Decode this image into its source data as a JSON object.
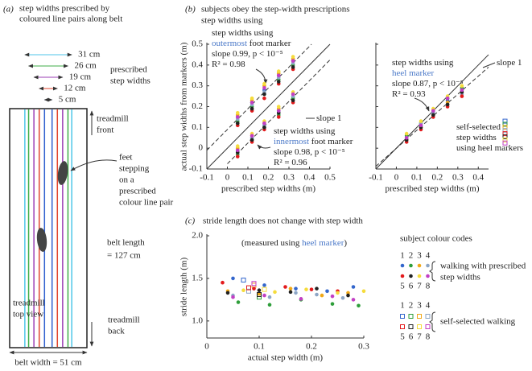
{
  "diagram": {
    "label": "(a)",
    "title": [
      "step widths prescribed by",
      "coloured line pairs along belt"
    ],
    "line_pairs": {
      "values": [
        31,
        26,
        19,
        12,
        5
      ],
      "value_labels": [
        "31 cm",
        "26 cm",
        "19 cm",
        "12 cm",
        "5 cm"
      ],
      "colors": [
        "#4fc6e8",
        "#3fae49",
        "#9b3fb5",
        "#e2452f",
        "#2f5fcf"
      ]
    },
    "prescribed": [
      "prescribed",
      "step widths"
    ],
    "front": [
      "treadmill",
      "front"
    ],
    "feet": [
      "feet",
      "stepping",
      "on a",
      "prescribed",
      "colour line pair"
    ],
    "length": [
      "belt length",
      "= 127 cm"
    ],
    "top_view": [
      "treadmill",
      "top view"
    ],
    "back": [
      "treadmill",
      "back"
    ],
    "width": "belt width = 51 cm"
  },
  "panel_b": {
    "label": "(b)",
    "title": [
      "subjects obey the step-width prescriptions",
      "step widths using"
    ]
  },
  "chart_data": [
    {
      "type": "scatter",
      "xlabel": "prescribed step widths (m)",
      "ylabel": "actual step widths from markers (m)",
      "xlim": [
        -0.1,
        0.5
      ],
      "ylim": [
        -0.1,
        0.5
      ],
      "xticks": [
        -0.1,
        0,
        0.1,
        0.2,
        0.3,
        0.4,
        0.5
      ],
      "yticks": [
        -0.1,
        0,
        0.1,
        0.2,
        0.3,
        0.4,
        0.5
      ],
      "show_ytick_labels": true,
      "series": [
        {
          "color": "#3366cc",
          "x": [
            0.05,
            0.12,
            0.18,
            0.25,
            0.32,
            0.05,
            0.12,
            0.18,
            0.25,
            0.32
          ],
          "values": [
            0.15,
            0.22,
            0.28,
            0.35,
            0.42,
            -0.01,
            0.05,
            0.11,
            0.18,
            0.25
          ]
        },
        {
          "color": "#2e9e3a",
          "x": [
            0.05,
            0.12,
            0.18,
            0.25,
            0.32,
            0.05,
            0.12,
            0.18,
            0.25,
            0.32
          ],
          "values": [
            0.13,
            0.2,
            0.26,
            0.33,
            0.4,
            -0.03,
            0.04,
            0.1,
            0.16,
            0.24
          ]
        },
        {
          "color": "#f0a818",
          "x": [
            0.05,
            0.12,
            0.18,
            0.25,
            0.32,
            0.05,
            0.12,
            0.18,
            0.25,
            0.32
          ],
          "values": [
            0.16,
            0.23,
            0.3,
            0.36,
            0.43,
            0,
            0.06,
            0.12,
            0.19,
            0.26
          ]
        },
        {
          "color": "#8da6c6",
          "x": [
            0.05,
            0.12,
            0.18,
            0.25,
            0.32,
            0.05,
            0.12,
            0.18,
            0.25,
            0.32
          ],
          "values": [
            0.14,
            0.21,
            0.27,
            0.34,
            0.41,
            -0.02,
            0.05,
            0.11,
            0.17,
            0.25
          ]
        },
        {
          "color": "#e31a1c",
          "x": [
            0.05,
            0.12,
            0.18,
            0.25,
            0.32,
            0.05,
            0.12,
            0.18,
            0.25,
            0.32
          ],
          "values": [
            0.11,
            0.18,
            0.24,
            0.31,
            0.38,
            -0.04,
            0.03,
            0.09,
            0.15,
            0.22
          ]
        },
        {
          "color": "#222222",
          "x": [
            0.05,
            0.12,
            0.18,
            0.25,
            0.32,
            0.05,
            0.12,
            0.18,
            0.25,
            0.32
          ],
          "values": [
            0.12,
            0.19,
            0.26,
            0.32,
            0.39,
            -0.02,
            0.04,
            0.1,
            0.17,
            0.23
          ]
        },
        {
          "color": "#f5dc3c",
          "x": [
            0.05,
            0.12,
            0.18,
            0.25,
            0.32,
            0.05,
            0.12,
            0.18,
            0.25,
            0.32
          ],
          "values": [
            0.17,
            0.24,
            0.31,
            0.37,
            0.44,
            0.01,
            0.07,
            0.13,
            0.2,
            0.27
          ]
        },
        {
          "color": "#c23fc4",
          "x": [
            0.05,
            0.12,
            0.18,
            0.25,
            0.32,
            0.05,
            0.12,
            0.18,
            0.25,
            0.32
          ],
          "values": [
            0.15,
            0.22,
            0.29,
            0.35,
            0.42,
            -0.01,
            0.06,
            0.12,
            0.18,
            0.26
          ]
        }
      ],
      "lines": [
        {
          "x": [
            -0.1,
            0.5
          ],
          "y": [
            -0.1,
            0.5
          ],
          "dashed": false
        },
        {
          "x": [
            -0.1,
            0.41
          ],
          "y": [
            -0.01,
            0.5
          ],
          "dashed": true
        },
        {
          "x": [
            0,
            0.5
          ],
          "y": [
            -0.075,
            0.425
          ],
          "dashed": true
        }
      ],
      "annotations": [
        {
          "lines": [
            [
              {
                "text": "step widths using"
              }
            ],
            [
              {
                "text": "outermost",
                "color": "#4a78c8"
              },
              {
                "text": " foot marker"
              }
            ],
            [
              {
                "text": "slope 0.99, p < 10⁻⁵"
              }
            ],
            [
              {
                "text": "R² = 0.98"
              }
            ]
          ]
        },
        {
          "lines": [
            [
              {
                "text": "slope 1"
              }
            ]
          ]
        },
        {
          "lines": [
            [
              {
                "text": "step widths using"
              }
            ],
            [
              {
                "text": "innermost",
                "color": "#4a78c8"
              },
              {
                "text": " foot marker"
              }
            ],
            [
              {
                "text": "slope 0.98, p < 10⁻⁵"
              }
            ],
            [
              {
                "text": "R² = 0.96"
              }
            ]
          ]
        }
      ]
    },
    {
      "type": "scatter",
      "xlabel": "prescribed step widths (m)",
      "xlim": [
        -0.1,
        0.45
      ],
      "ylim": [
        -0.1,
        0.5
      ],
      "xticks": [
        -0.1,
        0,
        0.1,
        0.2,
        0.3,
        0.4
      ],
      "yticks": [
        -0.1,
        0,
        0.1,
        0.2,
        0.3,
        0.4,
        0.5
      ],
      "show_ytick_labels": false,
      "series": [
        {
          "color": "#3366cc",
          "x": [
            0.05,
            0.12,
            0.18,
            0.25,
            0.32
          ],
          "values": [
            0.05,
            0.11,
            0.17,
            0.23,
            0.28
          ]
        },
        {
          "color": "#2e9e3a",
          "x": [
            0.05,
            0.12,
            0.18,
            0.25,
            0.32
          ],
          "values": [
            0.06,
            0.12,
            0.18,
            0.24,
            0.29
          ]
        },
        {
          "color": "#f0a818",
          "x": [
            0.05,
            0.12,
            0.18,
            0.25,
            0.32
          ],
          "values": [
            0.04,
            0.1,
            0.16,
            0.22,
            0.27
          ]
        },
        {
          "color": "#8da6c6",
          "x": [
            0.05,
            0.12,
            0.18,
            0.25,
            0.32
          ],
          "values": [
            0.05,
            0.12,
            0.17,
            0.21,
            0.26
          ]
        },
        {
          "color": "#e31a1c",
          "x": [
            0.05,
            0.12,
            0.18,
            0.25,
            0.32
          ],
          "values": [
            0.03,
            0.09,
            0.15,
            0.2,
            0.25
          ]
        },
        {
          "color": "#222222",
          "x": [
            0.05,
            0.12,
            0.18,
            0.25,
            0.32
          ],
          "values": [
            0.04,
            0.1,
            0.16,
            0.21,
            0.27
          ]
        },
        {
          "color": "#f5dc3c",
          "x": [
            0.05,
            0.12,
            0.18,
            0.25,
            0.32
          ],
          "values": [
            0.07,
            0.13,
            0.19,
            0.25,
            0.3
          ]
        },
        {
          "color": "#c23fc4",
          "x": [
            0.05,
            0.12,
            0.18,
            0.25,
            0.32
          ],
          "values": [
            0.05,
            0.11,
            0.18,
            0.24,
            0.28
          ]
        }
      ],
      "self_selected": {
        "values": [
          0.13,
          0.115,
          0.1,
          0.085,
          0.07,
          0.055,
          0.04,
          0.025
        ]
      },
      "lines": [
        {
          "x": [
            -0.1,
            0.45
          ],
          "y": [
            -0.1,
            0.45
          ],
          "dashed": false
        },
        {
          "x": [
            -0.1,
            0.45
          ],
          "y": [
            -0.087,
            0.39
          ],
          "dashed": true
        }
      ],
      "annotations": [
        {
          "lines": [
            [
              {
                "text": "step widths using"
              }
            ],
            [
              {
                "text": "heel marker",
                "color": "#4a78c8"
              }
            ],
            [
              {
                "text": "slope 0.87, p < 10⁻⁵"
              }
            ],
            [
              {
                "text": "R² = 0.93"
              }
            ]
          ]
        },
        {
          "lines": [
            [
              {
                "text": "slope 1"
              }
            ]
          ]
        },
        {
          "lines": [
            [
              {
                "text": "self-selected"
              }
            ],
            [
              {
                "text": "step widths"
              }
            ],
            [
              {
                "text": "using heel markers"
              }
            ]
          ]
        }
      ]
    },
    {
      "type": "scatter",
      "label": "(c)",
      "title": "stride length does not change with step width",
      "subtitle": [
        {
          "text": "(measured using "
        },
        {
          "text": "heel marker",
          "color": "#4a78c8"
        },
        {
          "text": ")"
        }
      ],
      "xlabel": "actual step width (m)",
      "ylabel": "stride length (m)",
      "xlim": [
        0,
        0.3
      ],
      "ylim": [
        0.8,
        2.0
      ],
      "xticks": [
        0,
        0.1,
        0.2,
        0.3
      ],
      "yticks": [
        {
          "value": 1,
          "label": "1.0"
        },
        {
          "value": 1.5,
          "label": "1.5"
        },
        {
          "value": 2,
          "label": "2.0"
        }
      ],
      "show_ytick_labels": true,
      "series": [
        {
          "name": "1",
          "color": "#3366cc",
          "x": [
            0.05,
            0.11,
            0.17,
            0.23,
            0.28
          ],
          "values": [
            1.5,
            1.42,
            1.38,
            1.35,
            1.4
          ],
          "self_selected_x": 0.07,
          "self_selected_value": 1.48
        },
        {
          "name": "2",
          "color": "#2e9e3a",
          "x": [
            0.06,
            0.12,
            0.18,
            0.24,
            0.29
          ],
          "values": [
            1.22,
            1.19,
            1.25,
            1.2,
            1.18
          ],
          "self_selected_x": 0.1,
          "self_selected_value": 1.28
        },
        {
          "name": "3",
          "color": "#f0a818",
          "x": [
            0.04,
            0.1,
            0.16,
            0.22,
            0.27
          ],
          "values": [
            1.35,
            1.32,
            1.38,
            1.3,
            1.33
          ],
          "self_selected_x": 0.09,
          "self_selected_value": 1.42
        },
        {
          "name": "4",
          "color": "#8da6c6",
          "x": [
            0.05,
            0.12,
            0.17,
            0.21,
            0.26
          ],
          "values": [
            1.3,
            1.28,
            1.33,
            1.31,
            1.27
          ],
          "self_selected_x": 0.08,
          "self_selected_value": 1.35
        },
        {
          "name": "5",
          "color": "#e31a1c",
          "x": [
            0.03,
            0.09,
            0.15,
            0.2,
            0.25
          ],
          "values": [
            1.45,
            1.38,
            1.4,
            1.37,
            1.35
          ],
          "self_selected_x": 0.08,
          "self_selected_value": 1.39
        },
        {
          "name": "6",
          "color": "#222222",
          "x": [
            0.04,
            0.1,
            0.16,
            0.21,
            0.27
          ],
          "values": [
            1.33,
            1.36,
            1.34,
            1.38,
            1.3
          ],
          "self_selected_x": 0.1,
          "self_selected_value": 1.31
        },
        {
          "name": "7",
          "color": "#f5dc3c",
          "x": [
            0.07,
            0.13,
            0.19,
            0.25,
            0.3
          ],
          "values": [
            1.36,
            1.34,
            1.37,
            1.33,
            1.35
          ],
          "self_selected_x": 0.11,
          "self_selected_value": 1.37
        },
        {
          "name": "8",
          "color": "#c23fc4",
          "x": [
            0.05,
            0.11,
            0.18,
            0.24,
            0.28
          ],
          "values": [
            1.28,
            1.3,
            1.26,
            1.29,
            1.25
          ],
          "self_selected_x": 0.09,
          "self_selected_value": 1.44
        }
      ],
      "legend": {
        "title": "subject colour codes",
        "prescribed": [
          "walking with prescribed",
          "step widths"
        ],
        "self_selected": [
          "self-selected walking"
        ]
      }
    }
  ]
}
